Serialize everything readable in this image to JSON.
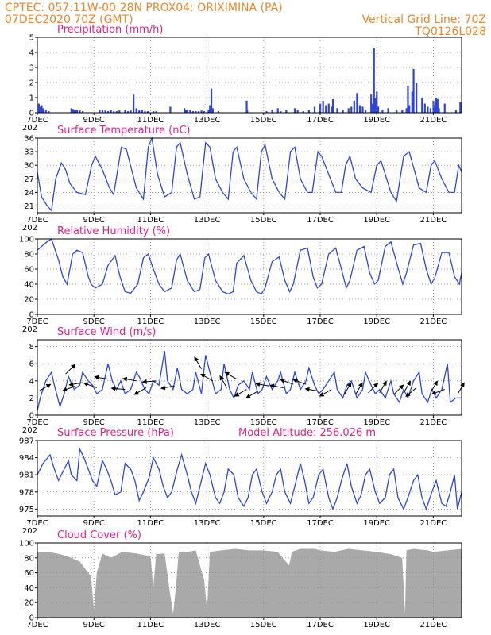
{
  "header": {
    "line1_left": "CPTEC:   057:11W-00:28N   PROX04: ORIXIMINA (PA)",
    "line2_left": "07DEC2020 70Z (GMT)",
    "line2_right": "Vertical Grid Line: 70Z",
    "line3_right": "TQ0126L028"
  },
  "colors": {
    "header": "#e8862a",
    "title": "#e0208a",
    "series": "#2e45d8",
    "cloud": "#a9a9a9",
    "arrow": "#000000"
  },
  "x_ticks": [
    {
      "day": 7,
      "label": "7DEC"
    },
    {
      "day": 9,
      "label": "9DEC"
    },
    {
      "day": 11,
      "label": "11DEC"
    },
    {
      "day": 13,
      "label": "13DEC"
    },
    {
      "day": 15,
      "label": "15DEC"
    },
    {
      "day": 17,
      "label": "17DEC"
    },
    {
      "day": 19,
      "label": "19DEC"
    },
    {
      "day": 21,
      "label": "21DEC"
    }
  ],
  "year_fragment": "202",
  "chart_data": [
    {
      "id": "precip",
      "type": "bar",
      "title": "Precipitation (mm/h)",
      "xlim": [
        7,
        22
      ],
      "ylim": [
        0,
        5
      ],
      "yticks": [
        0,
        1,
        2,
        3,
        4,
        5
      ],
      "x": [
        7.05,
        7.1,
        7.15,
        7.2,
        7.3,
        7.4,
        8.2,
        8.25,
        8.3,
        8.35,
        8.4,
        8.5,
        8.6,
        9.2,
        9.3,
        9.4,
        9.5,
        9.6,
        9.7,
        9.8,
        9.9,
        10.1,
        10.2,
        10.3,
        10.4,
        10.5,
        10.6,
        10.7,
        10.8,
        10.9,
        11.1,
        11.2,
        11.7,
        12.2,
        12.25,
        12.3,
        12.4,
        12.5,
        12.6,
        12.7,
        12.8,
        12.9,
        13.05,
        13.1,
        13.15,
        13.2,
        13.4,
        14.4,
        14.42,
        15.1,
        15.3,
        15.5,
        15.6,
        15.8,
        16.1,
        16.2,
        16.4,
        16.6,
        16.8,
        17.0,
        17.1,
        17.2,
        17.3,
        17.4,
        17.45,
        17.6,
        17.8,
        18.0,
        18.1,
        18.2,
        18.3,
        18.4,
        18.5,
        18.6,
        18.8,
        18.85,
        18.9,
        18.95,
        19.0,
        19.05,
        19.2,
        19.4,
        19.7,
        19.9,
        20.05,
        20.1,
        20.15,
        20.25,
        20.3,
        20.4,
        20.6,
        20.7,
        20.8,
        20.9,
        21.0,
        21.05,
        21.1,
        21.15,
        21.2,
        21.4,
        21.8,
        21.95
      ],
      "values": [
        0.6,
        0.4,
        0.5,
        0.3,
        0.2,
        0.1,
        0.3,
        0.25,
        0.2,
        0.2,
        0.2,
        0.15,
        0.1,
        0.2,
        0.2,
        0.15,
        0.1,
        0.2,
        0.1,
        0.1,
        0.15,
        0.2,
        0.1,
        0.15,
        1.2,
        0.3,
        0.2,
        0.2,
        0.1,
        0.1,
        0.1,
        0.1,
        0.4,
        0.3,
        0.2,
        0.2,
        0.2,
        0.1,
        0.1,
        0.1,
        0.15,
        0.1,
        0.2,
        0.5,
        1.6,
        0.3,
        0.1,
        0.8,
        0.2,
        0.1,
        0.2,
        0.3,
        0.1,
        0.2,
        0.3,
        0.2,
        0.1,
        0.2,
        0.4,
        0.6,
        0.8,
        0.5,
        0.6,
        0.4,
        0.9,
        0.3,
        0.2,
        0.3,
        0.4,
        0.8,
        1.3,
        0.5,
        0.4,
        0.2,
        1.2,
        0.6,
        4.3,
        1.0,
        1.4,
        0.4,
        0.2,
        0.3,
        0.2,
        0.2,
        0.3,
        1.8,
        0.5,
        1.4,
        2.9,
        2.0,
        1.0,
        0.6,
        0.4,
        0.3,
        0.8,
        0.5,
        1.0,
        0.9,
        0.3,
        0.6,
        0.2,
        0.7
      ]
    },
    {
      "id": "temp",
      "type": "line",
      "title": "Surface Temperature (nC)",
      "xlim": [
        7,
        22
      ],
      "ylim": [
        19.5,
        36
      ],
      "yticks": [
        21,
        24,
        27,
        30,
        33,
        36
      ],
      "x": [
        7.0,
        7.15,
        7.35,
        7.5,
        7.65,
        7.85,
        8.0,
        8.15,
        8.4,
        8.7,
        8.92,
        9.05,
        9.3,
        9.55,
        9.7,
        9.97,
        10.15,
        10.5,
        10.75,
        10.92,
        11.05,
        11.25,
        11.5,
        11.75,
        11.92,
        12.05,
        12.3,
        12.55,
        12.75,
        12.95,
        13.1,
        13.3,
        13.55,
        13.75,
        13.92,
        14.05,
        14.3,
        14.55,
        14.75,
        14.92,
        15.05,
        15.3,
        15.55,
        15.75,
        15.95,
        16.1,
        16.3,
        16.55,
        16.72,
        16.92,
        17.05,
        17.3,
        17.55,
        17.75,
        17.9,
        18.05,
        18.25,
        18.5,
        18.8,
        19.0,
        19.15,
        19.5,
        19.7,
        19.95,
        20.15,
        20.5,
        20.75,
        20.92,
        21.05,
        21.3,
        21.55,
        21.75,
        21.9,
        22.0
      ],
      "values": [
        28.5,
        23,
        21,
        20,
        27,
        30.5,
        29,
        26,
        24,
        23.5,
        30,
        32,
        29,
        25,
        23.5,
        34,
        33.5,
        25,
        22.5,
        34,
        36,
        28,
        23,
        24,
        34,
        35,
        28,
        22.5,
        23,
        35,
        34,
        27,
        24,
        22.5,
        33,
        34,
        27,
        24,
        22.5,
        33,
        34.5,
        27,
        24,
        22.5,
        33,
        34,
        27,
        24,
        24,
        33,
        32,
        28,
        24,
        24,
        30,
        32,
        27,
        25,
        24,
        30,
        31,
        24,
        22,
        32,
        33,
        25,
        24,
        30,
        31,
        27,
        24,
        24,
        30,
        28.5
      ]
    },
    {
      "id": "rh",
      "type": "line",
      "title": "Relative Humidity (%)",
      "xlim": [
        7,
        22
      ],
      "ylim": [
        0,
        100
      ],
      "yticks": [
        0,
        20,
        40,
        60,
        80,
        100
      ],
      "x": [
        7.0,
        7.3,
        7.5,
        7.75,
        7.9,
        8.05,
        8.25,
        8.4,
        8.6,
        8.8,
        8.9,
        9.05,
        9.3,
        9.5,
        9.75,
        9.92,
        10.1,
        10.3,
        10.55,
        10.75,
        10.92,
        11.1,
        11.3,
        11.5,
        11.75,
        11.92,
        12.05,
        12.3,
        12.55,
        12.75,
        12.92,
        13.05,
        13.3,
        13.55,
        13.75,
        13.92,
        14.05,
        14.3,
        14.55,
        14.75,
        14.92,
        15.05,
        15.3,
        15.55,
        15.75,
        15.92,
        16.05,
        16.3,
        16.55,
        16.75,
        16.9,
        17.05,
        17.3,
        17.55,
        17.75,
        17.92,
        18.05,
        18.3,
        18.55,
        18.75,
        18.92,
        19.05,
        19.3,
        19.5,
        19.75,
        19.92,
        20.05,
        20.3,
        20.55,
        20.75,
        20.92,
        21.05,
        21.3,
        21.55,
        21.75,
        21.92,
        22.0
      ],
      "values": [
        85,
        95,
        100,
        72,
        50,
        40,
        80,
        85,
        82,
        50,
        40,
        35,
        40,
        65,
        78,
        50,
        30,
        28,
        40,
        75,
        80,
        60,
        40,
        30,
        35,
        72,
        80,
        45,
        30,
        33,
        75,
        80,
        45,
        30,
        27,
        30,
        68,
        78,
        45,
        30,
        27,
        35,
        70,
        76,
        45,
        30,
        40,
        85,
        88,
        50,
        35,
        40,
        80,
        88,
        60,
        35,
        45,
        85,
        90,
        55,
        40,
        45,
        90,
        96,
        62,
        40,
        55,
        92,
        94,
        60,
        40,
        48,
        82,
        82,
        50,
        40,
        55
      ]
    },
    {
      "id": "wind",
      "type": "line",
      "title": "Surface Wind (m/s)",
      "xlim": [
        7,
        22
      ],
      "ylim": [
        0,
        8.8
      ],
      "yticks": [
        0,
        2,
        4,
        6,
        8
      ],
      "x": [
        7.0,
        7.1,
        7.3,
        7.5,
        7.6,
        7.8,
        7.95,
        8.1,
        8.3,
        8.5,
        8.6,
        8.8,
        8.95,
        9.1,
        9.3,
        9.5,
        9.65,
        9.8,
        9.95,
        10.1,
        10.3,
        10.5,
        10.6,
        10.8,
        10.95,
        11.1,
        11.3,
        11.5,
        11.6,
        11.8,
        11.95,
        12.1,
        12.3,
        12.5,
        12.6,
        12.8,
        12.95,
        13.1,
        13.3,
        13.5,
        13.6,
        13.8,
        13.95,
        14.1,
        14.3,
        14.5,
        14.6,
        14.8,
        14.95,
        15.1,
        15.3,
        15.5,
        15.6,
        15.8,
        15.95,
        16.1,
        16.3,
        16.5,
        16.6,
        16.8,
        16.95,
        17.1,
        17.3,
        17.5,
        17.6,
        17.8,
        17.95,
        18.1,
        18.3,
        18.5,
        18.6,
        18.8,
        18.95,
        19.1,
        19.3,
        19.5,
        19.6,
        19.8,
        19.95,
        20.1,
        20.3,
        20.5,
        20.6,
        20.8,
        20.95,
        21.1,
        21.3,
        21.5,
        21.6,
        21.8,
        22.0
      ],
      "values": [
        0.5,
        2,
        4,
        5,
        3.5,
        1,
        2.5,
        4.5,
        3,
        3.5,
        5,
        4,
        3.5,
        2.5,
        3,
        6,
        4,
        3,
        4,
        2.5,
        3,
        5,
        4.5,
        3,
        2.5,
        4,
        3.5,
        7.5,
        4,
        3,
        5.5,
        3,
        2.5,
        3,
        5,
        2.5,
        7,
        5,
        2.5,
        3,
        6,
        3,
        2,
        3.5,
        4,
        3,
        5,
        2.5,
        3,
        4.5,
        3,
        4,
        5,
        2.5,
        3,
        5,
        3,
        4,
        5.5,
        3.5,
        2.5,
        3,
        4,
        5,
        3,
        2,
        3.5,
        4,
        2,
        3,
        5,
        3.5,
        2.5,
        3,
        2,
        4,
        2.5,
        1.5,
        3,
        2,
        4,
        5,
        2.5,
        1.5,
        3,
        2,
        3,
        6,
        1.5,
        2,
        2
      ]
    },
    {
      "id": "pressure",
      "type": "line",
      "title": "Surface Pressure (hPa)",
      "annotation": "Model Altitude: 256.026 m",
      "xlim": [
        7,
        22
      ],
      "ylim": [
        973.8,
        987
      ],
      "yticks": [
        975,
        978,
        981,
        984,
        987
      ],
      "x": [
        7.0,
        7.2,
        7.45,
        7.6,
        7.75,
        7.95,
        8.1,
        8.2,
        8.4,
        8.5,
        8.65,
        8.8,
        8.95,
        9.1,
        9.3,
        9.45,
        9.6,
        9.75,
        9.95,
        10.1,
        10.3,
        10.45,
        10.6,
        10.75,
        10.95,
        11.1,
        11.3,
        11.45,
        11.6,
        11.75,
        11.95,
        12.1,
        12.3,
        12.45,
        12.6,
        12.75,
        12.95,
        13.1,
        13.3,
        13.45,
        13.6,
        13.75,
        13.95,
        14.1,
        14.3,
        14.45,
        14.6,
        14.75,
        14.95,
        15.1,
        15.3,
        15.45,
        15.6,
        15.75,
        15.95,
        16.1,
        16.3,
        16.45,
        16.6,
        16.75,
        16.95,
        17.1,
        17.3,
        17.45,
        17.6,
        17.75,
        17.95,
        18.1,
        18.3,
        18.45,
        18.6,
        18.75,
        18.95,
        19.1,
        19.3,
        19.45,
        19.6,
        19.75,
        19.95,
        20.1,
        20.3,
        20.45,
        20.6,
        20.75,
        20.95,
        21.1,
        21.3,
        21.45,
        21.6,
        21.75,
        21.85,
        22.0
      ],
      "values": [
        981,
        983,
        984.5,
        982,
        980,
        982,
        983.5,
        981,
        980,
        985.5,
        984,
        982,
        980,
        979,
        983.5,
        982,
        980,
        977.5,
        978,
        983,
        982,
        980,
        976.5,
        978,
        980.5,
        984,
        982,
        979,
        977,
        978,
        982,
        984.5,
        981,
        978,
        976,
        979,
        983,
        981,
        977,
        976,
        978,
        982,
        981,
        977,
        975.5,
        977,
        981,
        982,
        978,
        976,
        978,
        981,
        982,
        978,
        976,
        979,
        983,
        980,
        976,
        977,
        981,
        982,
        977,
        975,
        977,
        980,
        983,
        979,
        976,
        977.5,
        981,
        982,
        978,
        976,
        977,
        981,
        982,
        977,
        975,
        977,
        980,
        981,
        977,
        975,
        978,
        980,
        976,
        975.5,
        978,
        981,
        975,
        978
      ]
    },
    {
      "id": "cloud",
      "type": "area",
      "title": "Cloud Cover (%)",
      "xlim": [
        7,
        22
      ],
      "ylim": [
        0,
        100
      ],
      "yticks": [
        0,
        20,
        40,
        60,
        80,
        100
      ],
      "x": [
        7.0,
        7.4,
        7.8,
        8.2,
        8.5,
        8.9,
        9.0,
        9.1,
        9.3,
        9.6,
        10.0,
        10.5,
        11.0,
        11.1,
        11.2,
        11.5,
        11.7,
        11.8,
        11.9,
        12.0,
        12.3,
        12.6,
        12.9,
        13.0,
        13.1,
        13.5,
        14.0,
        14.5,
        15.0,
        15.5,
        15.9,
        16.0,
        16.3,
        16.8,
        17.0,
        17.5,
        18.0,
        18.5,
        19.0,
        19.5,
        19.9,
        20.0,
        20.05,
        20.3,
        20.8,
        21.0,
        21.5,
        22.0
      ],
      "values": [
        88,
        88,
        85,
        80,
        75,
        55,
        10,
        60,
        86,
        80,
        88,
        86,
        82,
        40,
        85,
        86,
        30,
        5,
        40,
        88,
        88,
        90,
        50,
        10,
        88,
        90,
        92,
        90,
        90,
        88,
        70,
        88,
        92,
        92,
        90,
        88,
        92,
        90,
        88,
        85,
        80,
        5,
        90,
        92,
        90,
        88,
        90,
        92
      ]
    }
  ],
  "wind_arrows": [
    {
      "day": 7.05,
      "speed": 2.8,
      "angle": 30
    },
    {
      "day": 8.0,
      "speed": 4.8,
      "angle": 45
    },
    {
      "day": 8.35,
      "speed": 3.4,
      "angle": 200
    },
    {
      "day": 8.6,
      "speed": 3.8,
      "angle": 190
    },
    {
      "day": 9.1,
      "speed": 3.2,
      "angle": 160
    },
    {
      "day": 9.5,
      "speed": 4.2,
      "angle": 170
    },
    {
      "day": 10.1,
      "speed": 3.0,
      "angle": 175
    },
    {
      "day": 10.5,
      "speed": 4.0,
      "angle": 170
    },
    {
      "day": 10.85,
      "speed": 3.2,
      "angle": 210
    },
    {
      "day": 11.2,
      "speed": 4.0,
      "angle": 185
    },
    {
      "day": 11.85,
      "speed": 3.4,
      "angle": 190
    },
    {
      "day": 12.8,
      "speed": 5.4,
      "angle": 120
    },
    {
      "day": 13.2,
      "speed": 4.0,
      "angle": 150
    },
    {
      "day": 13.7,
      "speed": 3.2,
      "angle": 120
    },
    {
      "day": 14.05,
      "speed": 4.2,
      "angle": 150
    },
    {
      "day": 14.4,
      "speed": 3.0,
      "angle": 210
    },
    {
      "day": 14.8,
      "speed": 2.8,
      "angle": 210
    },
    {
      "day": 15.2,
      "speed": 3.4,
      "angle": 170
    },
    {
      "day": 15.7,
      "speed": 3.2,
      "angle": 170
    },
    {
      "day": 16.05,
      "speed": 3.6,
      "angle": 160
    },
    {
      "day": 16.5,
      "speed": 3.6,
      "angle": 160
    },
    {
      "day": 16.95,
      "speed": 2.8,
      "angle": 170
    },
    {
      "day": 17.4,
      "speed": 3.0,
      "angle": 210
    },
    {
      "day": 17.85,
      "speed": 2.4,
      "angle": 60
    },
    {
      "day": 18.25,
      "speed": 2.4,
      "angle": 60
    },
    {
      "day": 18.7,
      "speed": 2.6,
      "angle": 45
    },
    {
      "day": 19.1,
      "speed": 2.6,
      "angle": 60
    },
    {
      "day": 19.6,
      "speed": 2.4,
      "angle": 45
    },
    {
      "day": 19.95,
      "speed": 2.6,
      "angle": 60
    },
    {
      "day": 20.4,
      "speed": 3.2,
      "angle": 220
    },
    {
      "day": 20.9,
      "speed": 2.6,
      "angle": 60
    },
    {
      "day": 21.4,
      "speed": 3.0,
      "angle": 200
    },
    {
      "day": 21.85,
      "speed": 2.4,
      "angle": 60
    }
  ]
}
